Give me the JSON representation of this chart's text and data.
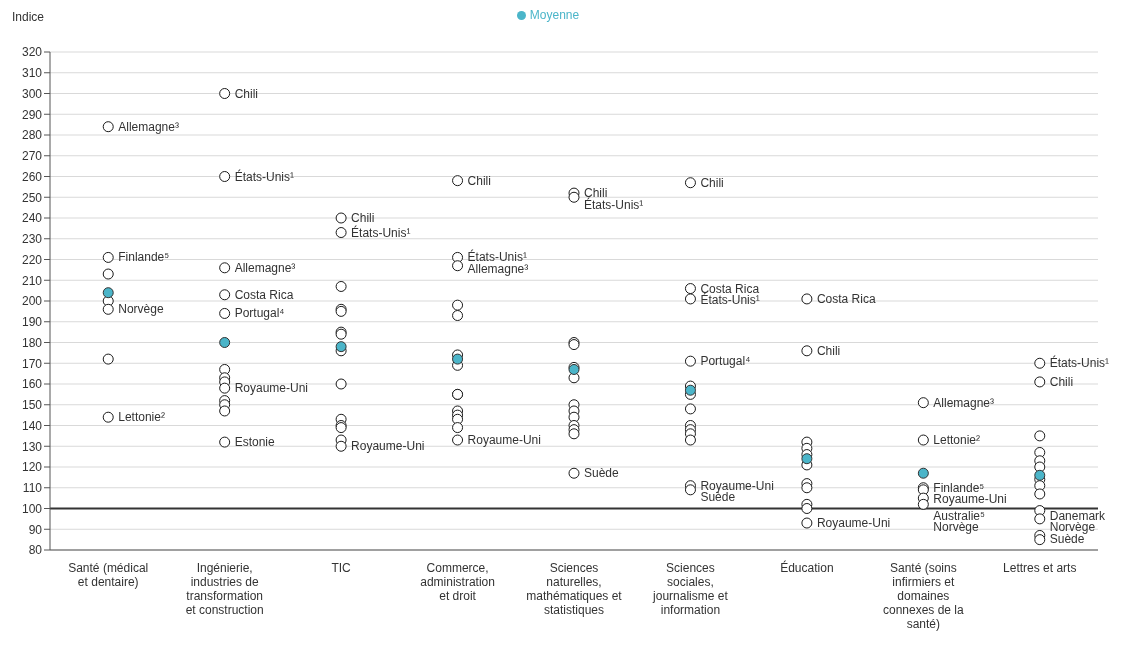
{
  "chart_data": {
    "type": "scatter",
    "ylabel": "Indice",
    "categories": [
      "Santé (médical et dentaire)",
      "Ingénierie, industries de transformation et construction",
      "TIC",
      "Commerce, administration et droit",
      "Sciences naturelles, mathématiques et statistiques",
      "Sciences sociales, journalisme et information",
      "Éducation",
      "Santé (soins infirmiers et domaines connexes de la santé)",
      "Lettres et arts"
    ],
    "series": [
      {
        "color": "#1a1a1a",
        "x": [
          "Santé (médical et dentaire)",
          "Santé (médical et dentaire)",
          "Santé (médical et dentaire)",
          "Santé (médical et dentaire)",
          "Santé (médical et dentaire)",
          "Santé (médical et dentaire)",
          "Santé (médical et dentaire)",
          "Ingénierie, industries de transformation et construction",
          "Ingénierie, industries de transformation et construction",
          "Ingénierie, industries de transformation et construction",
          "Ingénierie, industries de transformation et construction",
          "Ingénierie, industries de transformation et construction",
          "Ingénierie, industries de transformation et construction",
          "Ingénierie, industries de transformation et construction",
          "Ingénierie, industries de transformation et construction",
          "Ingénierie, industries de transformation et construction",
          "Ingénierie, industries de transformation et construction",
          "Ingénierie, industries de transformation et construction",
          "Ingénierie, industries de transformation et construction",
          "Ingénierie, industries de transformation et construction",
          "TIC",
          "TIC",
          "TIC",
          "TIC",
          "TIC",
          "TIC",
          "TIC",
          "TIC",
          "TIC",
          "TIC",
          "TIC",
          "TIC",
          "TIC",
          "TIC",
          "Commerce, administration et droit",
          "Commerce, administration et droit",
          "Commerce, administration et droit",
          "Commerce, administration et droit",
          "Commerce, administration et droit",
          "Commerce, administration et droit",
          "Commerce, administration et droit",
          "Commerce, administration et droit",
          "Commerce, administration et droit",
          "Commerce, administration et droit",
          "Commerce, administration et droit",
          "Commerce, administration et droit",
          "Commerce, administration et droit",
          "Commerce, administration et droit",
          "Sciences naturelles, mathématiques et statistiques",
          "Sciences naturelles, mathématiques et statistiques",
          "Sciences naturelles, mathématiques et statistiques",
          "Sciences naturelles, mathématiques et statistiques",
          "Sciences naturelles, mathématiques et statistiques",
          "Sciences naturelles, mathématiques et statistiques",
          "Sciences naturelles, mathématiques et statistiques",
          "Sciences naturelles, mathématiques et statistiques",
          "Sciences naturelles, mathématiques et statistiques",
          "Sciences naturelles, mathématiques et statistiques",
          "Sciences naturelles, mathématiques et statistiques",
          "Sciences naturelles, mathématiques et statistiques",
          "Sciences naturelles, mathématiques et statistiques",
          "Sciences sociales, journalisme et information",
          "Sciences sociales, journalisme et information",
          "Sciences sociales, journalisme et information",
          "Sciences sociales, journalisme et information",
          "Sciences sociales, journalisme et information",
          "Sciences sociales, journalisme et information",
          "Sciences sociales, journalisme et information",
          "Sciences sociales, journalisme et information",
          "Sciences sociales, journalisme et information",
          "Sciences sociales, journalisme et information",
          "Sciences sociales, journalisme et information",
          "Sciences sociales, journalisme et information",
          "Sciences sociales, journalisme et information",
          "Éducation",
          "Éducation",
          "Éducation",
          "Éducation",
          "Éducation",
          "Éducation",
          "Éducation",
          "Éducation",
          "Éducation",
          "Éducation",
          "Éducation",
          "Santé (soins infirmiers et domaines connexes de la santé)",
          "Santé (soins infirmiers et domaines connexes de la santé)",
          "Santé (soins infirmiers et domaines connexes de la santé)",
          "Santé (soins infirmiers et domaines connexes de la santé)",
          "Santé (soins infirmiers et domaines connexes de la santé)",
          "Santé (soins infirmiers et domaines connexes de la santé)",
          "Lettres et arts",
          "Lettres et arts",
          "Lettres et arts",
          "Lettres et arts",
          "Lettres et arts",
          "Lettres et arts",
          "Lettres et arts",
          "Lettres et arts",
          "Lettres et arts",
          "Lettres et arts",
          "Lettres et arts",
          "Lettres et arts",
          "Lettres et arts"
        ],
        "values": [
          284,
          221,
          213,
          200,
          196,
          172,
          144,
          300,
          260,
          216,
          203,
          194,
          167,
          163,
          161,
          158,
          152,
          150,
          147,
          132,
          240,
          233,
          207,
          196,
          195,
          185,
          184,
          176,
          160,
          143,
          140,
          139,
          133,
          130,
          258,
          221,
          217,
          198,
          193,
          174,
          169,
          155,
          155,
          147,
          145,
          143,
          139,
          133,
          252,
          250,
          180,
          179,
          168,
          163,
          150,
          147,
          144,
          140,
          138,
          136,
          117,
          257,
          206,
          201,
          171,
          159,
          155,
          148,
          140,
          138,
          136,
          133,
          111,
          109,
          201,
          176,
          132,
          129,
          126,
          121,
          112,
          110,
          102,
          100,
          93,
          151,
          133,
          110,
          109,
          105,
          102,
          170,
          161,
          135,
          127,
          123,
          120,
          114,
          111,
          107,
          99,
          95,
          87,
          85
        ]
      },
      {
        "name": "Moyenne",
        "color": "#4bb5c9",
        "values": [
          204,
          180,
          178,
          172,
          167,
          157,
          124,
          117,
          116
        ]
      }
    ],
    "ylim": [
      80,
      320
    ],
    "yticks": [
      80,
      90,
      100,
      110,
      120,
      130,
      140,
      150,
      160,
      170,
      180,
      190,
      200,
      210,
      220,
      230,
      240,
      250,
      260,
      270,
      280,
      290,
      300,
      310,
      320
    ],
    "grid": "y",
    "legend": "top",
    "marker": "circle",
    "ref_lines": [
      {
        "axis": "y",
        "value": 100,
        "color": "#333333"
      }
    ],
    "annotations": [
      {
        "text": "Allemagne³",
        "x": "Santé (médical et dentaire)",
        "y": 284
      },
      {
        "text": "Finlande⁵",
        "x": "Santé (médical et dentaire)",
        "y": 221
      },
      {
        "text": "Norvège",
        "x": "Santé (médical et dentaire)",
        "y": 196
      },
      {
        "text": "Lettonie²",
        "x": "Santé (médical et dentaire)",
        "y": 144
      },
      {
        "text": "Chili",
        "x": "Ingénierie, industries de transformation et construction",
        "y": 300
      },
      {
        "text": "États-Unis¹",
        "x": "Ingénierie, industries de transformation et construction",
        "y": 260
      },
      {
        "text": "Allemagne³",
        "x": "Ingénierie, industries de transformation et construction",
        "y": 216
      },
      {
        "text": "Costa Rica",
        "x": "Ingénierie, industries de transformation et construction",
        "y": 203
      },
      {
        "text": "Portugal⁴",
        "x": "Ingénierie, industries de transformation et construction",
        "y": 194
      },
      {
        "text": "Royaume-Uni",
        "x": "Ingénierie, industries de transformation et construction",
        "y": 158
      },
      {
        "text": "Estonie",
        "x": "Ingénierie, industries de transformation et construction",
        "y": 132
      },
      {
        "text": "Chili",
        "x": "TIC",
        "y": 240
      },
      {
        "text": "États-Unis¹",
        "x": "TIC",
        "y": 233
      },
      {
        "text": "Royaume-Uni",
        "x": "TIC",
        "y": 130
      },
      {
        "text": "Chili",
        "x": "Commerce, administration et droit",
        "y": 258
      },
      {
        "text": "États-Unis¹",
        "x": "Commerce, administration et droit",
        "y": 221
      },
      {
        "text": "Allemagne³",
        "x": "Commerce, administration et droit",
        "y": 217
      },
      {
        "text": "Royaume-Uni",
        "x": "Commerce, administration et droit",
        "y": 133
      },
      {
        "text": "Chili",
        "x": "Sciences naturelles, mathématiques et statistiques",
        "y": 252
      },
      {
        "text": "États-Unis¹",
        "x": "Sciences naturelles, mathématiques et statistiques",
        "y": 250
      },
      {
        "text": "Suède",
        "x": "Sciences naturelles, mathématiques et statistiques",
        "y": 117
      },
      {
        "text": "Chili",
        "x": "Sciences sociales, journalisme et information",
        "y": 257
      },
      {
        "text": "Costa Rica",
        "x": "Sciences sociales, journalisme et information",
        "y": 206
      },
      {
        "text": "États-Unis¹",
        "x": "Sciences sociales, journalisme et information",
        "y": 201
      },
      {
        "text": "Portugal⁴",
        "x": "Sciences sociales, journalisme et information",
        "y": 171
      },
      {
        "text": "Royaume-Uni",
        "x": "Sciences sociales, journalisme et information",
        "y": 111
      },
      {
        "text": "Suède",
        "x": "Sciences sociales, journalisme et information",
        "y": 109
      },
      {
        "text": "Costa Rica",
        "x": "Éducation",
        "y": 201
      },
      {
        "text": "Chili",
        "x": "Éducation",
        "y": 176
      },
      {
        "text": "Royaume-Uni",
        "x": "Éducation",
        "y": 93
      },
      {
        "text": "Allemagne³",
        "x": "Santé (soins infirmiers et domaines connexes de la santé)",
        "y": 151
      },
      {
        "text": "Lettonie²",
        "x": "Santé (soins infirmiers et domaines connexes de la santé)",
        "y": 133
      },
      {
        "text": "Finlande⁵",
        "x": "Santé (soins infirmiers et domaines connexes de la santé)",
        "y": 110
      },
      {
        "text": "Royaume-Uni",
        "x": "Santé (soins infirmiers et domaines connexes de la santé)",
        "y": 109
      },
      {
        "text": "Australie⁵",
        "x": "Santé (soins infirmiers et domaines connexes de la santé)",
        "y": 105
      },
      {
        "text": "Norvège",
        "x": "Santé (soins infirmiers et domaines connexes de la santé)",
        "y": 102
      },
      {
        "text": "États-Unis¹",
        "x": "Lettres et arts",
        "y": 170
      },
      {
        "text": "Chili",
        "x": "Lettres et arts",
        "y": 161
      },
      {
        "text": "Danemark",
        "x": "Lettres et arts",
        "y": 99
      },
      {
        "text": "Norvège",
        "x": "Lettres et arts",
        "y": 95
      },
      {
        "text": "Suède",
        "x": "Lettres et arts",
        "y": 87
      }
    ]
  }
}
